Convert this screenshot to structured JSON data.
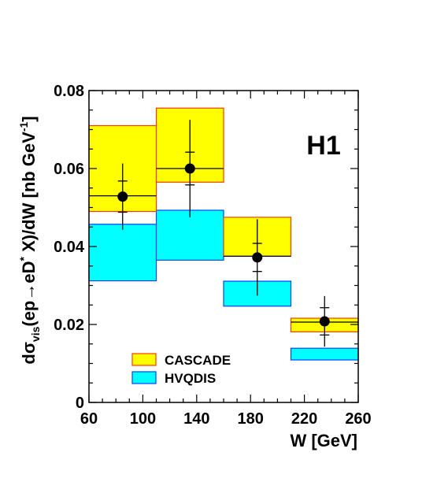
{
  "chart_data": {
    "type": "bar",
    "experiment_label": "H1",
    "xlabel": "W [GeV]",
    "ylabel": "dσvis(ep→eD*X)/dW [nb GeV-1]",
    "ylabel_parts": {
      "d": "d",
      "sigma": "σ",
      "vis": "vis",
      "body": "(ep→eD",
      "star": "*",
      "rest": " X)/dW [nb GeV",
      "exp": "-1",
      "close": "]"
    },
    "xlim": [
      60,
      260
    ],
    "ylim": [
      0,
      0.08
    ],
    "x_ticks": [
      "60",
      "100",
      "140",
      "180",
      "220",
      "260"
    ],
    "y_ticks": [
      "0",
      "0.02",
      "0.04",
      "0.06",
      "0.08"
    ],
    "bins": [
      [
        60,
        110
      ],
      [
        110,
        160
      ],
      [
        160,
        210
      ],
      [
        210,
        260
      ]
    ],
    "series": [
      {
        "name": "CASCADE",
        "kind": "band",
        "fill": "#ffff00",
        "stroke": "#ff3b00",
        "low": [
          0.049,
          0.0565,
          0.0375,
          0.0181
        ],
        "high": [
          0.071,
          0.0755,
          0.0475,
          0.0216
        ],
        "central": [
          0.053,
          0.06,
          0.0375,
          0.0206
        ]
      },
      {
        "name": "HVQDIS",
        "kind": "band",
        "fill": "#00ffff",
        "stroke": "#0044ff",
        "low": [
          0.0312,
          0.0365,
          0.0247,
          0.0109
        ],
        "high": [
          0.0457,
          0.0493,
          0.0311,
          0.0139
        ]
      },
      {
        "name": "Data",
        "kind": "points",
        "x": [
          85,
          135,
          185,
          235
        ],
        "y": [
          0.0528,
          0.06,
          0.0372,
          0.0208
        ],
        "stat_err": [
          0.004,
          0.0042,
          0.0036,
          0.0035
        ],
        "tot_err": [
          0.0085,
          0.0125,
          0.0098,
          0.0065
        ]
      }
    ],
    "legend": {
      "position": "bottom-left",
      "entries": [
        "CASCADE",
        "HVQDIS"
      ]
    }
  }
}
